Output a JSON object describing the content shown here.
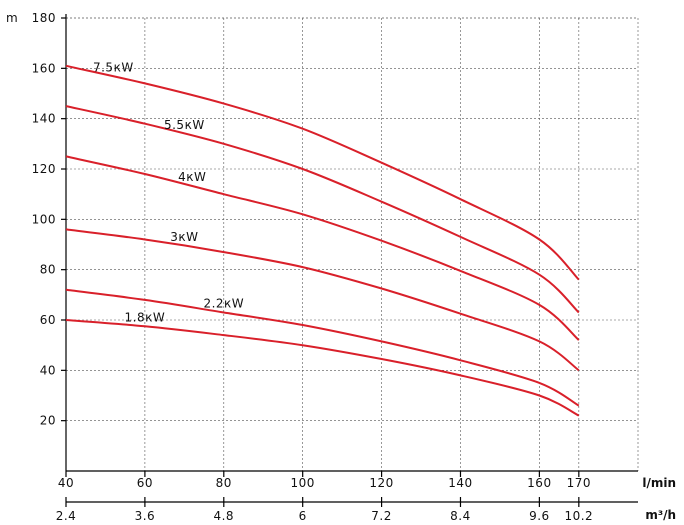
{
  "chart_data": {
    "type": "line",
    "title": "",
    "ylabel": "m",
    "xlabel_primary": "l/min",
    "xlabel_secondary": "m³/h",
    "ylim": [
      0,
      180
    ],
    "xlim": [
      40,
      185
    ],
    "y_ticks": [
      "180",
      "160",
      "140",
      "120",
      "100",
      "80",
      "60",
      "40",
      "20"
    ],
    "x_ticks_lmin": [
      "40",
      "60",
      "80",
      "100",
      "120",
      "140",
      "160",
      "170"
    ],
    "x_ticks_m3h": [
      "2.4",
      "3.6",
      "4.8",
      "6",
      "7.2",
      "8.4",
      "9.6",
      "10.2"
    ],
    "grid": true,
    "series": [
      {
        "name": "7.5кW",
        "x": [
          40,
          60,
          80,
          100,
          120,
          140,
          160,
          170
        ],
        "y": [
          161,
          154,
          146,
          136,
          122.5,
          108,
          92,
          76
        ]
      },
      {
        "name": "5.5кW",
        "x": [
          40,
          60,
          80,
          100,
          120,
          140,
          160,
          170
        ],
        "y": [
          145,
          138,
          130,
          120,
          107,
          93,
          78,
          63
        ]
      },
      {
        "name": "4кW",
        "x": [
          40,
          60,
          80,
          100,
          120,
          140,
          160,
          170
        ],
        "y": [
          125,
          118,
          110,
          102,
          91.5,
          79.5,
          66,
          52
        ]
      },
      {
        "name": "3кW",
        "x": [
          40,
          60,
          80,
          100,
          120,
          140,
          160,
          170
        ],
        "y": [
          96,
          92,
          87,
          81,
          72.5,
          62.5,
          51.5,
          40
        ]
      },
      {
        "name": "2.2кW",
        "x": [
          40,
          60,
          80,
          100,
          120,
          140,
          160,
          170
        ],
        "y": [
          72,
          68,
          63,
          58,
          51.5,
          44,
          35,
          26
        ]
      },
      {
        "name": "1.8кW",
        "x": [
          40,
          60,
          80,
          100,
          120,
          140,
          160,
          170
        ],
        "y": [
          60,
          57.5,
          54,
          50,
          44.5,
          38,
          30,
          22
        ]
      }
    ]
  }
}
